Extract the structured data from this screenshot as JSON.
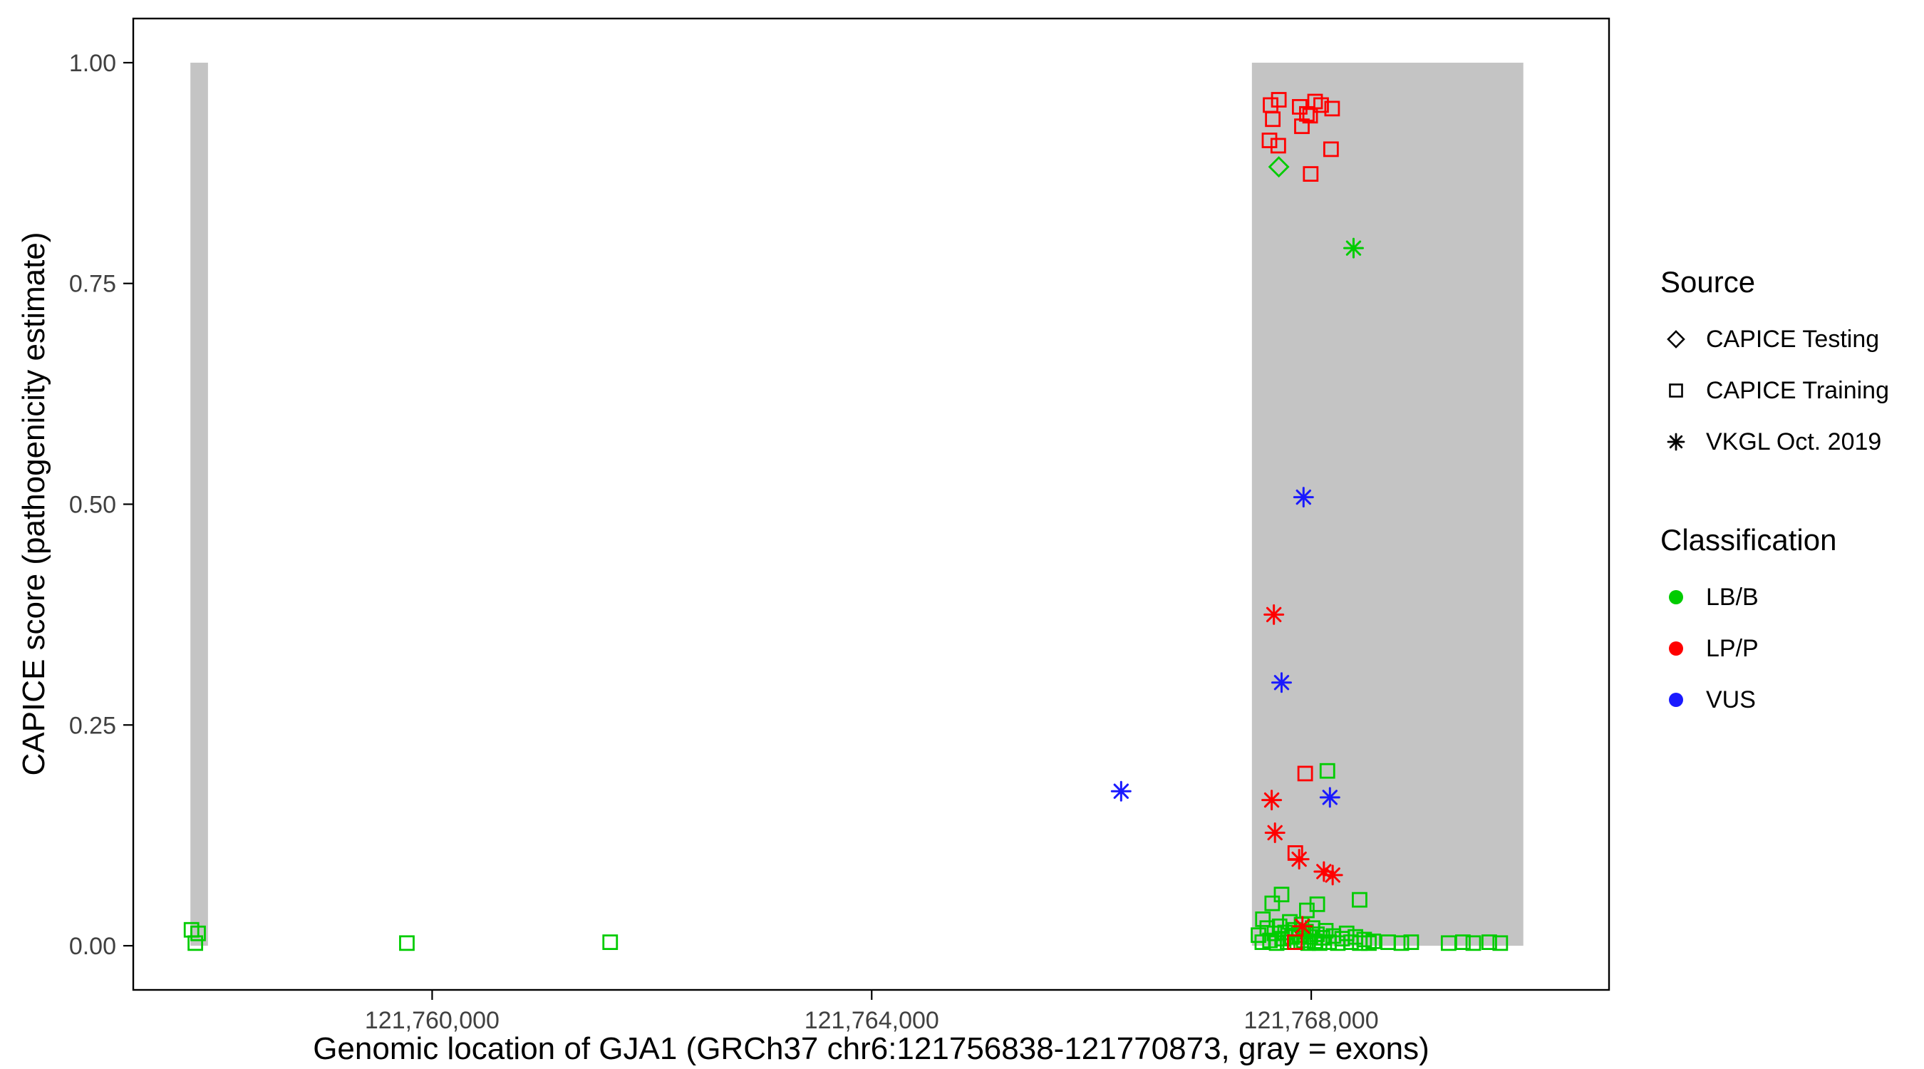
{
  "figure": {
    "kind": "scatter plot of CAPICE pathogenicity scores along the GJA1 gene"
  },
  "colors": {
    "LB/B": "#00cc00",
    "LP/P": "#ff0000",
    "VUS": "#1a1aff",
    "exon": "#c4c4c4",
    "axis_text": "#404040",
    "panel_border": "#000000"
  },
  "legend": {
    "groups": [
      {
        "id": "source",
        "title": "Source",
        "items": [
          {
            "label": "CAPICE Testing",
            "marker": "diamond-open",
            "color": "#000000"
          },
          {
            "label": "CAPICE Training",
            "marker": "square-open",
            "color": "#000000"
          },
          {
            "label": "VKGL Oct. 2019",
            "marker": "asterisk",
            "color": "#000000"
          }
        ]
      },
      {
        "id": "classification",
        "title": "Classification",
        "items": [
          {
            "label": "LB/B",
            "marker": "circle-filled",
            "color": "#00cc00"
          },
          {
            "label": "LP/P",
            "marker": "circle-filled",
            "color": "#ff0000"
          },
          {
            "label": "VUS",
            "marker": "circle-filled",
            "color": "#1a1aff"
          }
        ]
      }
    ]
  },
  "chart_data": {
    "type": "scatter",
    "title": "",
    "xlabel": "Genomic location of GJA1 (GRCh37 chr6:121756838-121770873, gray = exons)",
    "ylabel": "CAPICE score (pathogenicity estimate)",
    "xlim": [
      121757280,
      121770710
    ],
    "ylim": [
      -0.05,
      1.05
    ],
    "grid": "off",
    "legend_position": "right",
    "xticks": [
      {
        "value": 121760000,
        "label": "121,760,000"
      },
      {
        "value": 121764000,
        "label": "121,764,000"
      },
      {
        "value": 121768000,
        "label": "121,768,000"
      }
    ],
    "yticks": [
      {
        "value": 0.0,
        "label": "0.00"
      },
      {
        "value": 0.25,
        "label": "0.25"
      },
      {
        "value": 0.5,
        "label": "0.50"
      },
      {
        "value": 0.75,
        "label": "0.75"
      },
      {
        "value": 1.0,
        "label": "1.00"
      }
    ],
    "exon_regions": [
      {
        "start": 121757800,
        "end": 121757960,
        "ymin": 0.0,
        "ymax": 1.0
      },
      {
        "start": 121767460,
        "end": 121769930,
        "ymin": 0.0,
        "ymax": 1.0
      }
    ],
    "points": {
      "columns": [
        "x",
        "y",
        "source",
        "classification"
      ],
      "rows": [
        [
          121757810,
          0.018,
          "CAPICE Training",
          "LB/B"
        ],
        [
          121757870,
          0.014,
          "CAPICE Training",
          "LB/B"
        ],
        [
          121757845,
          0.003,
          "CAPICE Training",
          "LB/B"
        ],
        [
          121759770,
          0.003,
          "CAPICE Training",
          "LB/B"
        ],
        [
          121761620,
          0.004,
          "CAPICE Training",
          "LB/B"
        ],
        [
          121768147,
          0.198,
          "CAPICE Training",
          "LB/B"
        ],
        [
          121767730,
          0.058,
          "CAPICE Training",
          "LB/B"
        ],
        [
          121767645,
          0.048,
          "CAPICE Training",
          "LB/B"
        ],
        [
          121767960,
          0.04,
          "CAPICE Training",
          "LB/B"
        ],
        [
          121768055,
          0.047,
          "CAPICE Training",
          "LB/B"
        ],
        [
          121768440,
          0.052,
          "CAPICE Training",
          "LB/B"
        ],
        [
          121767560,
          0.03,
          "CAPICE Training",
          "LB/B"
        ],
        [
          121767520,
          0.012,
          "CAPICE Training",
          "LB/B"
        ],
        [
          121767555,
          0.004,
          "CAPICE Training",
          "LB/B"
        ],
        [
          121767600,
          0.02,
          "CAPICE Training",
          "LB/B"
        ],
        [
          121767625,
          0.006,
          "CAPICE Training",
          "LB/B"
        ],
        [
          121767665,
          0.014,
          "CAPICE Training",
          "LB/B"
        ],
        [
          121767685,
          0.003,
          "CAPICE Training",
          "LB/B"
        ],
        [
          121767712,
          0.022,
          "CAPICE Training",
          "LB/B"
        ],
        [
          121767735,
          0.008,
          "CAPICE Training",
          "LB/B"
        ],
        [
          121767762,
          0.015,
          "CAPICE Training",
          "LB/B"
        ],
        [
          121767785,
          0.004,
          "CAPICE Training",
          "LB/B"
        ],
        [
          121767805,
          0.027,
          "CAPICE Training",
          "LB/B"
        ],
        [
          121767825,
          0.01,
          "CAPICE Training",
          "LB/B"
        ],
        [
          121767852,
          0.018,
          "CAPICE Training",
          "LB/B"
        ],
        [
          121767872,
          0.004,
          "CAPICE Training",
          "LB/B"
        ],
        [
          121767892,
          0.012,
          "CAPICE Training",
          "LB/B"
        ],
        [
          121767912,
          0.024,
          "CAPICE Training",
          "LB/B"
        ],
        [
          121767932,
          0.006,
          "CAPICE Training",
          "LB/B"
        ],
        [
          121767952,
          0.016,
          "CAPICE Training",
          "LB/B"
        ],
        [
          121767972,
          0.003,
          "CAPICE Training",
          "LB/B"
        ],
        [
          121767992,
          0.01,
          "CAPICE Training",
          "LB/B"
        ],
        [
          121768012,
          0.02,
          "CAPICE Training",
          "LB/B"
        ],
        [
          121768032,
          0.005,
          "CAPICE Training",
          "LB/B"
        ],
        [
          121768052,
          0.013,
          "CAPICE Training",
          "LB/B"
        ],
        [
          121768076,
          0.003,
          "CAPICE Training",
          "LB/B"
        ],
        [
          121768102,
          0.009,
          "CAPICE Training",
          "LB/B"
        ],
        [
          121768132,
          0.017,
          "CAPICE Training",
          "LB/B"
        ],
        [
          121768162,
          0.004,
          "CAPICE Training",
          "LB/B"
        ],
        [
          121768202,
          0.011,
          "CAPICE Training",
          "LB/B"
        ],
        [
          121768242,
          0.003,
          "CAPICE Training",
          "LB/B"
        ],
        [
          121768282,
          0.008,
          "CAPICE Training",
          "LB/B"
        ],
        [
          121768322,
          0.014,
          "CAPICE Training",
          "LB/B"
        ],
        [
          121768362,
          0.004,
          "CAPICE Training",
          "LB/B"
        ],
        [
          121768402,
          0.01,
          "CAPICE Training",
          "LB/B"
        ],
        [
          121768442,
          0.003,
          "CAPICE Training",
          "LB/B"
        ],
        [
          121768482,
          0.007,
          "CAPICE Training",
          "LB/B"
        ],
        [
          121768525,
          0.003,
          "CAPICE Training",
          "LB/B"
        ],
        [
          121768565,
          0.005,
          "CAPICE Training",
          "LB/B"
        ],
        [
          121768700,
          0.004,
          "CAPICE Training",
          "LB/B"
        ],
        [
          121768820,
          0.003,
          "CAPICE Training",
          "LB/B"
        ],
        [
          121768910,
          0.004,
          "CAPICE Training",
          "LB/B"
        ],
        [
          121769250,
          0.003,
          "CAPICE Training",
          "LB/B"
        ],
        [
          121769380,
          0.004,
          "CAPICE Training",
          "LB/B"
        ],
        [
          121769475,
          0.003,
          "CAPICE Training",
          "LB/B"
        ],
        [
          121769620,
          0.004,
          "CAPICE Training",
          "LB/B"
        ],
        [
          121769720,
          0.003,
          "CAPICE Training",
          "LB/B"
        ],
        [
          121767705,
          0.882,
          "CAPICE Testing",
          "LB/B"
        ],
        [
          121768385,
          0.79,
          "VKGL Oct. 2019",
          "LB/B"
        ],
        [
          121767630,
          0.952,
          "CAPICE Training",
          "LP/P"
        ],
        [
          121767705,
          0.958,
          "CAPICE Training",
          "LP/P"
        ],
        [
          121767895,
          0.95,
          "CAPICE Training",
          "LP/P"
        ],
        [
          121767960,
          0.942,
          "CAPICE Training",
          "LP/P"
        ],
        [
          121768035,
          0.956,
          "CAPICE Training",
          "LP/P"
        ],
        [
          121768090,
          0.952,
          "CAPICE Training",
          "LP/P"
        ],
        [
          121768190,
          0.948,
          "CAPICE Training",
          "LP/P"
        ],
        [
          121767650,
          0.936,
          "CAPICE Training",
          "LP/P"
        ],
        [
          121767990,
          0.94,
          "CAPICE Training",
          "LP/P"
        ],
        [
          121767915,
          0.928,
          "CAPICE Training",
          "LP/P"
        ],
        [
          121767620,
          0.912,
          "CAPICE Training",
          "LP/P"
        ],
        [
          121767700,
          0.906,
          "CAPICE Training",
          "LP/P"
        ],
        [
          121768180,
          0.902,
          "CAPICE Training",
          "LP/P"
        ],
        [
          121767995,
          0.874,
          "CAPICE Training",
          "LP/P"
        ],
        [
          121767945,
          0.195,
          "CAPICE Training",
          "LP/P"
        ],
        [
          121767855,
          0.105,
          "CAPICE Training",
          "LP/P"
        ],
        [
          121767850,
          0.004,
          "CAPICE Training",
          "LP/P"
        ],
        [
          121767660,
          0.375,
          "VKGL Oct. 2019",
          "LP/P"
        ],
        [
          121767640,
          0.165,
          "VKGL Oct. 2019",
          "LP/P"
        ],
        [
          121767670,
          0.128,
          "VKGL Oct. 2019",
          "LP/P"
        ],
        [
          121767890,
          0.098,
          "VKGL Oct. 2019",
          "LP/P"
        ],
        [
          121768115,
          0.084,
          "VKGL Oct. 2019",
          "LP/P"
        ],
        [
          121768195,
          0.08,
          "VKGL Oct. 2019",
          "LP/P"
        ],
        [
          121767920,
          0.022,
          "VKGL Oct. 2019",
          "LP/P"
        ],
        [
          121767930,
          0.508,
          "VKGL Oct. 2019",
          "VUS"
        ],
        [
          121767730,
          0.298,
          "VKGL Oct. 2019",
          "VUS"
        ],
        [
          121768170,
          0.168,
          "VKGL Oct. 2019",
          "VUS"
        ],
        [
          121766270,
          0.175,
          "VKGL Oct. 2019",
          "VUS"
        ]
      ]
    }
  }
}
